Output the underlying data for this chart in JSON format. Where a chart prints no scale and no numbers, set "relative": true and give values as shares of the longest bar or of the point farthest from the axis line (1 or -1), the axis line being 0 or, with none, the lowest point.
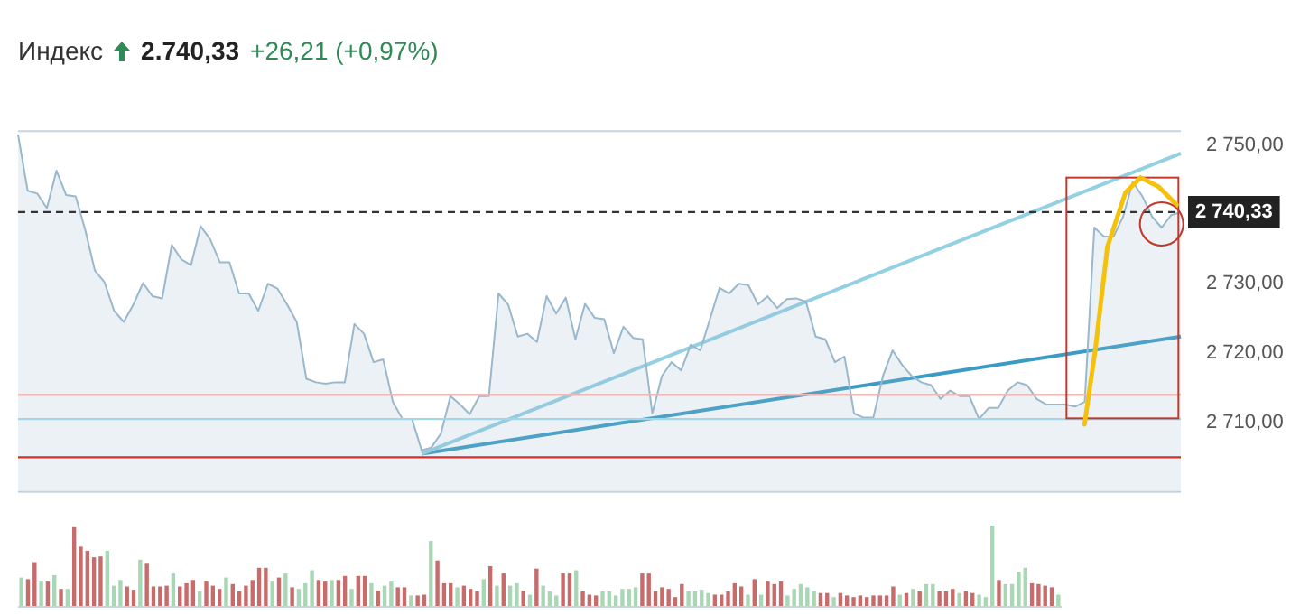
{
  "chart_data": [
    {
      "type": "area",
      "title": "Индекс",
      "annotations": [
        "2.740,33",
        "+26,21 (+0,97%)"
      ],
      "categories": [
        null,
        null,
        null,
        null,
        null,
        null,
        null,
        null,
        null,
        null,
        null,
        null,
        null,
        null,
        null,
        null,
        null,
        null,
        null,
        null,
        null,
        null,
        null,
        null,
        null,
        null,
        null,
        null,
        null,
        null,
        null,
        null,
        null,
        null,
        null,
        null,
        null,
        null,
        null,
        null,
        null,
        null,
        null,
        null,
        null,
        null,
        null,
        null,
        null,
        null,
        null,
        null,
        null,
        null,
        null,
        null,
        null,
        null,
        null,
        null,
        null,
        null,
        null,
        null,
        null,
        null,
        null,
        null,
        null,
        null,
        null,
        null,
        null,
        null,
        null,
        null,
        null,
        null,
        null,
        null,
        null,
        null,
        null,
        null,
        null,
        null,
        null,
        null,
        null,
        null,
        null,
        null,
        null,
        null,
        null,
        null,
        null,
        null,
        null,
        null,
        null,
        null,
        null,
        null,
        null,
        null,
        null,
        null,
        null,
        null,
        null,
        null,
        null,
        null,
        null,
        null,
        null,
        null,
        null,
        null,
        null,
        null
      ],
      "series": [
        {
          "color": "#9ab8cc",
          "values": [
            2751.5,
            2743.4,
            2743.0,
            2740.9,
            2746.3,
            2742.8,
            2742.6,
            2737.7,
            2731.9,
            2730.2,
            2726.1,
            2724.5,
            2727.0,
            2730.1,
            2728.2,
            2727.9,
            2735.6,
            2733.5,
            2732.7,
            2738.3,
            2736.4,
            2733.1,
            2733.1,
            2728.6,
            2728.6,
            2726.1,
            2730.0,
            2729.3,
            2727.0,
            2724.5,
            2716.3,
            2715.8,
            2715.6,
            2715.8,
            2715.8,
            2724.2,
            2722.8,
            2718.7,
            2719.1,
            2713.0,
            2710.5,
            2710.5,
            2706.0,
            2706.4,
            2708.4,
            2713.8,
            2712.6,
            2711.2,
            2713.8,
            2713.8,
            2728.6,
            2727.0,
            2722.4,
            2722.8,
            2721.6,
            2728.2,
            2725.7,
            2728.0,
            2722.0,
            2727.1,
            2725.1,
            2724.9,
            2720.0,
            2723.8,
            2722.2,
            2722.0,
            2711.3,
            2716.7,
            2718.7,
            2717.5,
            2721.2,
            2720.4,
            2724.9,
            2729.4,
            2728.6,
            2730.0,
            2729.8,
            2727.0,
            2728.2,
            2726.5,
            2727.8,
            2727.9,
            2727.4,
            2722.4,
            2722.0,
            2718.7,
            2719.5,
            2711.3,
            2710.7,
            2710.7,
            2716.7,
            2720.4,
            2718.3,
            2716.7,
            2715.8,
            2715.4,
            2713.4,
            2714.6,
            2713.8,
            2713.8,
            2710.5,
            2712.1,
            2712.1,
            2714.6,
            2715.8,
            2715.4,
            2713.4,
            2712.6,
            2712.6,
            2712.6,
            2712.3,
            2713.0,
            2738.1,
            2736.8,
            2736.8,
            2739.7,
            2744.7,
            2742.6,
            2739.7,
            2738.1,
            2739.9,
            2740.33
          ]
        },
        {
          "type": "line",
          "color": "#93d0e3",
          "values": [
            null,
            null,
            null,
            null,
            null,
            null,
            null,
            null,
            null,
            null,
            null,
            null,
            null,
            null,
            null,
            null,
            null,
            null,
            null,
            null,
            null,
            null,
            null,
            null,
            null,
            null,
            null,
            null,
            null,
            null,
            null,
            null,
            null,
            null,
            null,
            null,
            null,
            null,
            null,
            null,
            null,
            null,
            2705.5,
            null,
            null,
            null,
            null,
            null,
            null,
            null,
            null,
            null,
            null,
            null,
            null,
            null,
            null,
            null,
            null,
            null,
            null,
            null,
            null,
            null,
            null,
            null,
            null,
            null,
            null,
            null,
            null,
            null,
            null,
            null,
            null,
            null,
            null,
            null,
            null,
            null,
            null,
            null,
            null,
            null,
            null,
            null,
            null,
            null,
            null,
            null,
            null,
            null,
            null,
            null,
            null,
            null,
            null,
            null,
            null,
            null,
            null,
            null,
            null,
            null,
            null,
            null,
            null,
            null,
            null,
            null,
            null,
            null,
            null,
            null,
            null,
            null,
            null,
            null,
            null,
            null,
            null,
            2748.8
          ]
        },
        {
          "type": "line",
          "color": "#3a9cc4",
          "values": [
            null,
            null,
            null,
            null,
            null,
            null,
            null,
            null,
            null,
            null,
            null,
            null,
            null,
            null,
            null,
            null,
            null,
            null,
            null,
            null,
            null,
            null,
            null,
            null,
            null,
            null,
            null,
            null,
            null,
            null,
            null,
            null,
            null,
            null,
            null,
            null,
            null,
            null,
            null,
            null,
            null,
            null,
            2705.5,
            null,
            null,
            null,
            null,
            null,
            null,
            null,
            null,
            null,
            null,
            null,
            null,
            null,
            null,
            null,
            null,
            null,
            null,
            null,
            null,
            null,
            null,
            null,
            null,
            null,
            null,
            null,
            null,
            null,
            null,
            null,
            null,
            null,
            null,
            null,
            null,
            null,
            null,
            null,
            null,
            null,
            null,
            null,
            null,
            null,
            null,
            null,
            null,
            null,
            null,
            null,
            null,
            null,
            null,
            null,
            null,
            null,
            null,
            null,
            null,
            null,
            null,
            null,
            null,
            null,
            null,
            null,
            null,
            null,
            null,
            null,
            null,
            null,
            null,
            null,
            null,
            null,
            null,
            2722.4
          ]
        }
      ],
      "ylim": [
        2700,
        2752
      ],
      "yticks": [
        {
          "value": 2710,
          "label": "2 710,00"
        },
        {
          "value": 2720,
          "label": "2 720,00"
        },
        {
          "value": 2730,
          "label": "2 730,00"
        },
        {
          "value": 2740,
          "label": null
        },
        {
          "value": 2750,
          "label": "2 750,00"
        }
      ],
      "ref_lines": [
        {
          "axis": "y",
          "value": 2740.33,
          "label": "2 740,33",
          "color": "#333333",
          "line_style": "dashed"
        },
        {
          "axis": "y",
          "value": 2714,
          "color": "#f0b8b8",
          "line_style": "solid"
        },
        {
          "axis": "y",
          "value": 2710.5,
          "color": "#a3d6e6",
          "line_style": "solid"
        },
        {
          "axis": "y",
          "value": 2705,
          "color": "#d03030",
          "line_style": "solid"
        }
      ],
      "tick_labels": "y",
      "legend": false
    },
    {
      "type": "bar",
      "relative": true,
      "tick_labels": false,
      "categories": [
        null,
        null,
        null,
        null,
        null,
        null,
        null,
        null,
        null,
        null,
        null,
        null,
        null,
        null,
        null,
        null,
        null,
        null,
        null,
        null,
        null,
        null,
        null,
        null,
        null,
        null,
        null,
        null,
        null,
        null,
        null,
        null,
        null,
        null,
        null,
        null,
        null,
        null,
        null,
        null,
        null,
        null,
        null,
        null,
        null,
        null,
        null,
        null,
        null,
        null,
        null,
        null,
        null,
        null,
        null,
        null,
        null,
        null,
        null,
        null,
        null,
        null,
        null,
        null,
        null,
        null,
        null,
        null,
        null,
        null,
        null,
        null,
        null,
        null,
        null,
        null,
        null,
        null,
        null,
        null,
        null,
        null,
        null,
        null,
        null,
        null,
        null,
        null,
        null,
        null,
        null,
        null,
        null,
        null,
        null,
        null,
        null,
        null,
        null,
        null,
        null,
        null,
        null,
        null,
        null,
        null,
        null,
        null,
        null,
        null,
        null,
        null,
        null,
        null,
        null,
        null,
        null,
        null,
        null,
        null,
        null,
        null,
        null,
        null,
        null,
        null,
        null,
        null,
        null,
        null,
        null,
        null,
        null,
        null,
        null,
        null,
        null,
        null,
        null,
        null,
        null,
        null,
        null,
        null,
        null,
        null,
        null,
        null,
        null,
        null,
        null,
        null,
        null,
        null,
        null,
        null,
        null,
        null
      ],
      "values": [
        0.36,
        0.34,
        0.55,
        0.31,
        0.31,
        0.39,
        0.22,
        0.22,
        0.98,
        0.74,
        0.69,
        0.61,
        0.62,
        0.69,
        0.26,
        0.33,
        0.25,
        0.21,
        0.58,
        0.53,
        0.25,
        0.25,
        0.26,
        0.41,
        0.25,
        0.29,
        0.33,
        0.19,
        0.31,
        0.26,
        0.22,
        0.36,
        0.28,
        0.19,
        0.26,
        0.33,
        0.48,
        0.48,
        0.31,
        0.36,
        0.41,
        0.24,
        0.22,
        0.29,
        0.45,
        0.33,
        0.31,
        0.33,
        0.33,
        0.38,
        0.22,
        0.38,
        0.38,
        0.29,
        0.2,
        0.26,
        0.31,
        0.24,
        0.24,
        0.14,
        0.14,
        0.15,
        0.81,
        0.57,
        0.29,
        0.29,
        0.24,
        0.26,
        0.22,
        0.19,
        0.34,
        0.5,
        0.26,
        0.41,
        0.26,
        0.29,
        0.2,
        0.15,
        0.47,
        0.26,
        0.19,
        0.14,
        0.41,
        0.41,
        0.45,
        0.19,
        0.15,
        0.14,
        0.19,
        0.19,
        0.14,
        0.22,
        0.22,
        0.24,
        0.41,
        0.41,
        0.19,
        0.24,
        0.22,
        0.12,
        0.28,
        0.19,
        0.19,
        0.21,
        0.17,
        0.15,
        0.15,
        0.19,
        0.29,
        0.25,
        0.15,
        0.34,
        0.15,
        0.31,
        0.28,
        0.31,
        0.14,
        0.22,
        0.28,
        0.24,
        0.19,
        0.17,
        0.17,
        0.12,
        0.17,
        0.14,
        0.12,
        0.14,
        0.12,
        0.14,
        0.14,
        0.14,
        0.25,
        0.15,
        0.17,
        0.22,
        0.19,
        0.28,
        0.28,
        0.19,
        0.19,
        0.22,
        0.17,
        0.19,
        0.17,
        0.15,
        0.12,
        1,
        0.33,
        0.28,
        0.28,
        0.43,
        0.48,
        0.29,
        0.28,
        0.26,
        0.24,
        0.15
      ],
      "colors": [
        "#a9d6b4",
        "#c76b6b",
        "#c76b6b",
        "#a9d6b4",
        "#c76b6b",
        "#a9d6b4",
        "#c76b6b",
        "#a9d6b4",
        "#c76b6b",
        "#c76b6b",
        "#c76b6b",
        "#c76b6b",
        "#c76b6b",
        "#a9d6b4",
        "#a9d6b4",
        "#a9d6b4",
        "#c76b6b",
        "#c76b6b",
        "#a9d6b4",
        "#c76b6b",
        "#c76b6b",
        "#c76b6b",
        "#c76b6b",
        "#a9d6b4",
        "#c76b6b",
        "#c76b6b",
        "#c76b6b",
        "#a9d6b4",
        "#c76b6b",
        "#c76b6b",
        "#c76b6b",
        "#a9d6b4",
        "#c76b6b",
        "#c76b6b",
        "#c76b6b",
        "#c76b6b",
        "#c76b6b",
        "#c76b6b",
        "#a9d6b4",
        "#c76b6b",
        "#a9d6b4",
        "#c76b6b",
        "#a9d6b4",
        "#a9d6b4",
        "#a9d6b4",
        "#c76b6b",
        "#c76b6b",
        "#a9d6b4",
        "#c76b6b",
        "#c76b6b",
        "#a9d6b4",
        "#c76b6b",
        "#c76b6b",
        "#a9d6b4",
        "#c76b6b",
        "#a9d6b4",
        "#a9d6b4",
        "#c76b6b",
        "#c76b6b",
        "#a9d6b4",
        "#c76b6b",
        "#c76b6b",
        "#a9d6b4",
        "#c76b6b",
        "#c76b6b",
        "#c76b6b",
        "#a9d6b4",
        "#c76b6b",
        "#c76b6b",
        "#c76b6b",
        "#a9d6b4",
        "#c76b6b",
        "#a9d6b4",
        "#c76b6b",
        "#a9d6b4",
        "#a9d6b4",
        "#c76b6b",
        "#a9d6b4",
        "#c76b6b",
        "#a9d6b4",
        "#a9d6b4",
        "#a9d6b4",
        "#c76b6b",
        "#c76b6b",
        "#a9d6b4",
        "#c76b6b",
        "#c76b6b",
        "#c76b6b",
        "#a9d6b4",
        "#a9d6b4",
        "#a9d6b4",
        "#a9d6b4",
        "#a9d6b4",
        "#a9d6b4",
        "#c76b6b",
        "#c76b6b",
        "#c76b6b",
        "#c76b6b",
        "#c76b6b",
        "#c76b6b",
        "#c76b6b",
        "#a9d6b4",
        "#a9d6b4",
        "#a9d6b4",
        "#a9d6b4",
        "#c76b6b",
        "#c76b6b",
        "#c76b6b",
        "#c76b6b",
        "#c76b6b",
        "#a9d6b4",
        "#c76b6b",
        "#a9d6b4",
        "#c76b6b",
        "#c76b6b",
        "#c76b6b",
        "#a9d6b4",
        "#a9d6b4",
        "#a9d6b4",
        "#a9d6b4",
        "#a9d6b4",
        "#c76b6b",
        "#c76b6b",
        "#a9d6b4",
        "#c76b6b",
        "#c76b6b",
        "#c76b6b",
        "#c76b6b",
        "#c76b6b",
        "#c76b6b",
        "#c76b6b",
        "#c76b6b",
        "#c76b6b",
        "#a9d6b4",
        "#c76b6b",
        "#a9d6b4",
        "#c76b6b",
        "#a9d6b4",
        "#a9d6b4",
        "#c76b6b",
        "#c76b6b",
        "#c76b6b",
        "#a9d6b4",
        "#c76b6b",
        "#c76b6b",
        "#a9d6b4",
        "#a9d6b4",
        "#a9d6b4",
        "#c76b6b",
        "#a9d6b4",
        "#a9d6b4",
        "#a9d6b4",
        "#a9d6b4",
        "#c76b6b",
        "#c76b6b",
        "#c76b6b",
        "#c76b6b",
        "#a9d6b4"
      ]
    }
  ]
}
